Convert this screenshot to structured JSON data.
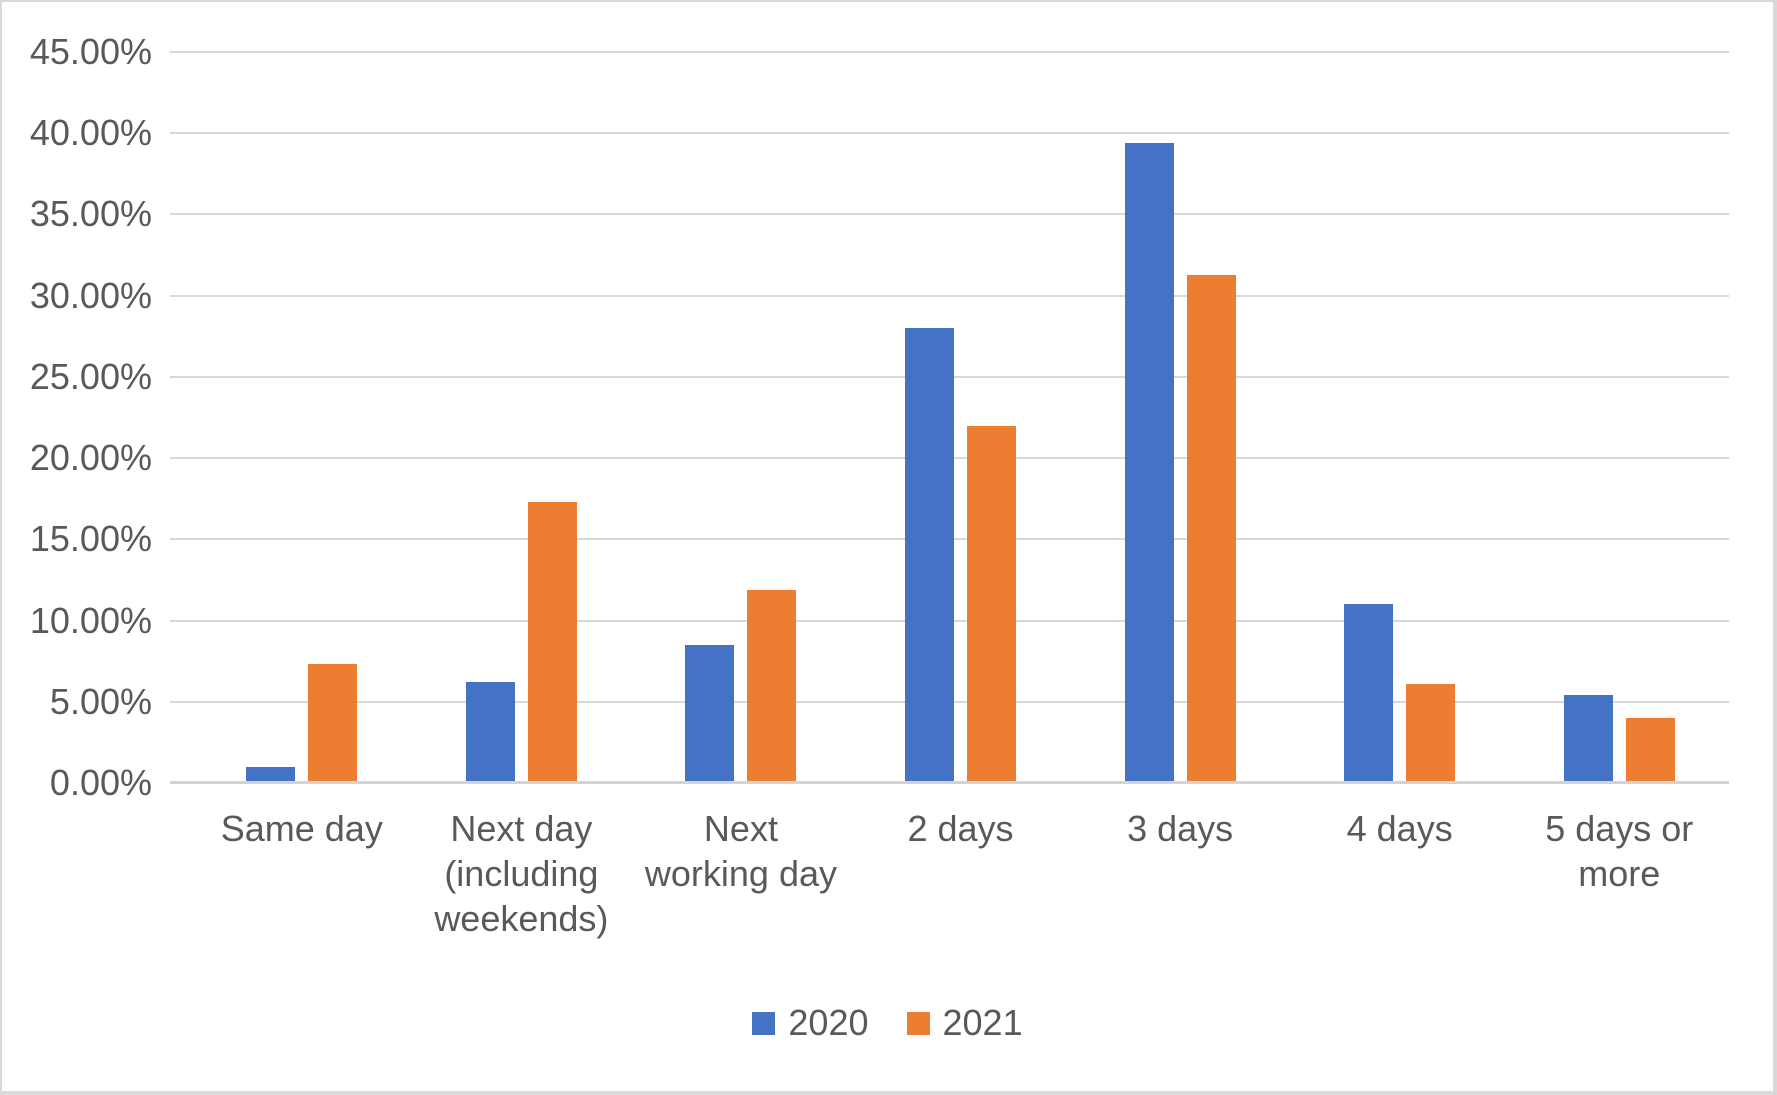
{
  "chart_data": {
    "type": "bar",
    "title": "",
    "xlabel": "",
    "ylabel": "",
    "units": "percent",
    "categories": [
      "Same day",
      "Next day (including weekends)",
      "Next working day",
      "2 days",
      "3 days",
      "4 days",
      "5 days or more"
    ],
    "categories_display": [
      [
        "Same day"
      ],
      [
        "Next day",
        "(including",
        "weekends)"
      ],
      [
        "Next",
        "working day"
      ],
      [
        "2 days"
      ],
      [
        "3 days"
      ],
      [
        "4 days"
      ],
      [
        "5 days or",
        "more"
      ]
    ],
    "series": [
      {
        "name": "2020",
        "color": "#4472C4",
        "values": [
          1.0,
          6.2,
          8.5,
          28.0,
          39.4,
          11.0,
          5.4
        ]
      },
      {
        "name": "2021",
        "color": "#ED7D31",
        "values": [
          7.3,
          17.3,
          11.9,
          22.0,
          31.3,
          6.1,
          4.0
        ]
      }
    ],
    "y_ticks": [
      "45.00%",
      "40.00%",
      "35.00%",
      "30.00%",
      "25.00%",
      "20.00%",
      "15.00%",
      "10.00%",
      "5.00%",
      "0.00%"
    ],
    "ylim": [
      0,
      45
    ],
    "grid": true,
    "legend_position": "bottom",
    "colors": {
      "axis_text": "#595959",
      "gridline": "#D9D9D9",
      "axis_line": "#D3D3D3",
      "frame_border": "#D9D9D9",
      "background": "#FFFFFF"
    }
  }
}
